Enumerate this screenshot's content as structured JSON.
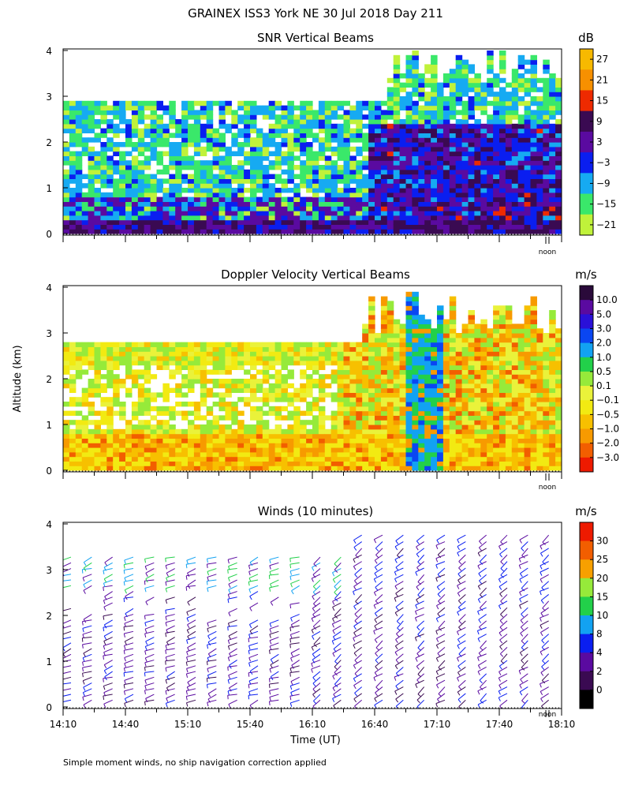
{
  "page_title": "GRAINEX ISS3 York NE  30 Jul 2018 Day 211",
  "y_axis_label": "Altitude (km)",
  "x_axis_label": "Time (UT)",
  "footnote": "Simple moment winds, no ship navigation correction applied",
  "noon_label": "noon",
  "chart_data": [
    {
      "type": "heatmap",
      "title": "SNR Vertical Beams",
      "ylim": [
        0,
        4
      ],
      "yticks": [
        0,
        1,
        2,
        3,
        4
      ],
      "colorbar": {
        "unit": "dB",
        "labels": [
          "27",
          "21",
          "15",
          "9",
          "3",
          "−3",
          "−9",
          "−15",
          "−21"
        ],
        "colors": [
          "#f7b900",
          "#f79000",
          "#ee2a00",
          "#3a0a52",
          "#5a0aa0",
          "#0a1ef0",
          "#16aaf2",
          "#3ae86a",
          "#c0f23a"
        ]
      }
    },
    {
      "type": "heatmap",
      "title": "Doppler Velocity Vertical Beams",
      "ylim": [
        0,
        4
      ],
      "yticks": [
        0,
        1,
        2,
        3,
        4
      ],
      "colorbar": {
        "unit": "m/s",
        "labels": [
          "10.0",
          "5.0",
          "3.0",
          "2.0",
          "1.0",
          "0.5",
          "0.1",
          "−0.1",
          "−0.5",
          "−1.0",
          "−2.0",
          "−3.0"
        ],
        "colors": [
          "#2a0a3a",
          "#5a0aa0",
          "#2a10d8",
          "#0a46f2",
          "#12a2f2",
          "#22d04a",
          "#96ea3a",
          "#eaf23a",
          "#f2ea12",
          "#f7c000",
          "#f79a00",
          "#f25e00",
          "#ee1a00"
        ]
      }
    },
    {
      "type": "scatter",
      "title": "Winds (10 minutes)",
      "ylim": [
        0,
        4
      ],
      "yticks": [
        0,
        1,
        2,
        3,
        4
      ],
      "x": [
        "14:10",
        "14:40",
        "15:10",
        "15:40",
        "16:10",
        "16:40",
        "17:10",
        "17:40",
        "18:10"
      ],
      "colorbar": {
        "unit": "m/s",
        "labels": [
          "30",
          "25",
          "20",
          "15",
          "10",
          "8",
          "4",
          "2",
          "0"
        ],
        "colors": [
          "#ee1a00",
          "#f25e00",
          "#f7a000",
          "#96ea3a",
          "#22d04a",
          "#12a2f2",
          "#0a1ef0",
          "#5a0aa0",
          "#3a0a52",
          "#000000"
        ]
      }
    }
  ]
}
